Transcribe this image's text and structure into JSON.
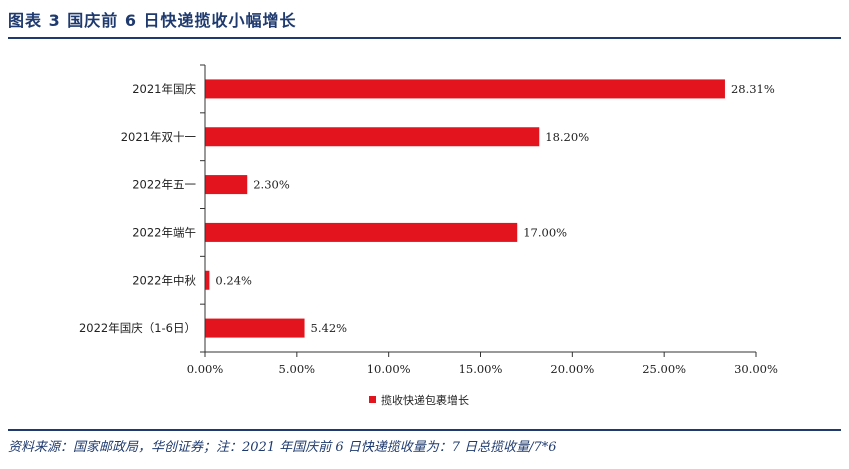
{
  "figure": {
    "title": "图表 3 国庆前 6 日快递揽收小幅增长",
    "source_note": "资料来源：国家邮政局，华创证券；注：2021 年国庆前 6 日快递揽收量为：7 日总揽收量/7*6"
  },
  "colors": {
    "bar": "#e3141d",
    "accent": "#1f3a6e",
    "axis": "#333333"
  },
  "chart_data": {
    "type": "bar",
    "orientation": "horizontal",
    "categories": [
      "2021年国庆",
      "2021年双十一",
      "2022年五一",
      "2022年端午",
      "2022年中秋",
      "2022年国庆（1-6日）"
    ],
    "values": [
      28.31,
      18.2,
      2.3,
      17.0,
      0.24,
      5.42
    ],
    "value_labels": [
      "28.31%",
      "18.20%",
      "2.30%",
      "17.00%",
      "0.24%",
      "5.42%"
    ],
    "series": [
      {
        "name": "揽收快递包裹增长",
        "values": [
          28.31,
          18.2,
          2.3,
          17.0,
          0.24,
          5.42
        ]
      }
    ],
    "xlim": [
      0,
      30
    ],
    "xticks": [
      0,
      5,
      10,
      15,
      20,
      25,
      30
    ],
    "xtick_labels": [
      "0.00%",
      "5.00%",
      "10.00%",
      "15.00%",
      "20.00%",
      "25.00%",
      "30.00%"
    ],
    "grid": false,
    "legend_position": "bottom-center"
  }
}
